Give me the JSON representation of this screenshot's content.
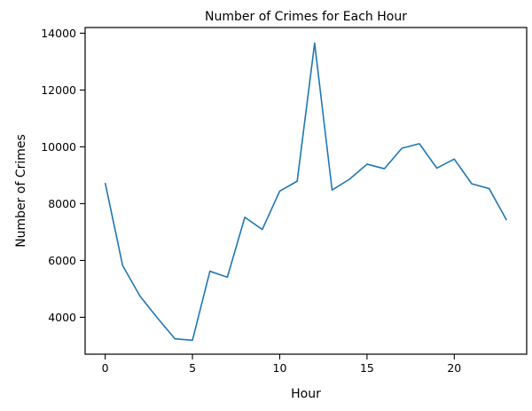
{
  "chart_data": {
    "type": "line",
    "title": "Number of Crimes for Each Hour",
    "xlabel": "Hour",
    "ylabel": "Number of Crimes",
    "xlim": [
      -1.15,
      24.15
    ],
    "ylim": [
      2700,
      14200
    ],
    "xticks": [
      0,
      5,
      10,
      15,
      20
    ],
    "yticks": [
      4000,
      6000,
      8000,
      10000,
      12000,
      14000
    ],
    "grid": false,
    "series": [
      {
        "color": "#1f77b4",
        "x": [
          0,
          1,
          2,
          3,
          4,
          5,
          6,
          7,
          8,
          9,
          10,
          11,
          12,
          13,
          14,
          15,
          16,
          17,
          18,
          19,
          20,
          21,
          22,
          23
        ],
        "y": [
          8730,
          5820,
          4740,
          3970,
          3240,
          3190,
          5620,
          5410,
          7520,
          7090,
          8440,
          8790,
          13650,
          8480,
          8860,
          9390,
          9230,
          9950,
          10110,
          9250,
          9570,
          8700,
          8530,
          7420
        ]
      }
    ]
  }
}
